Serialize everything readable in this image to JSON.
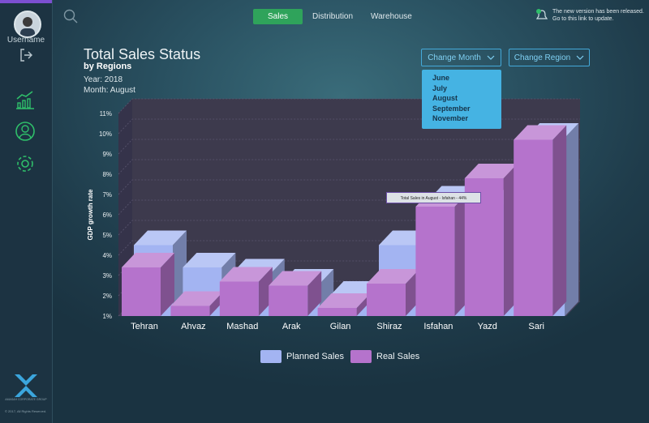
{
  "user": {
    "username": "Username"
  },
  "nav": {
    "tabs": [
      {
        "label": "Sales"
      },
      {
        "label": "Distribution"
      },
      {
        "label": "Warehouse"
      }
    ]
  },
  "notification": {
    "line1": "The new version has been released.",
    "line2": "Go to this link to update."
  },
  "header": {
    "title": "Total Sales Status",
    "subtitle": "by Regions",
    "year": "Year: 2018",
    "month": "Month: August"
  },
  "filters": {
    "month_label": "Change Month",
    "region_label": "Change Region",
    "month_options": [
      "June",
      "July",
      "August",
      "September",
      "November"
    ]
  },
  "chart_data": {
    "type": "bar",
    "ylabel": "GDP growth rate",
    "ylim": [
      1,
      11
    ],
    "yticks": [
      "1%",
      "2%",
      "3%",
      "4%",
      "5%",
      "6%",
      "7%",
      "8%",
      "9%",
      "10%",
      "11%"
    ],
    "categories": [
      "Tehran",
      "Ahvaz",
      "Mashad",
      "Arak",
      "Gilan",
      "Shiraz",
      "Isfahan",
      "Yazd",
      "Sari"
    ],
    "series": [
      {
        "name": "Planned Sales",
        "color": "#a3b4f2",
        "values": [
          4.5,
          3.4,
          3.1,
          2.6,
          2.0,
          4.5,
          6.7,
          6.5,
          9.8
        ]
      },
      {
        "name": "Real Sales",
        "color": "#b573cc",
        "values": [
          3.4,
          1.5,
          2.7,
          2.5,
          1.4,
          2.6,
          6.4,
          7.8,
          9.7
        ]
      }
    ],
    "tooltip": "Total Sales in August - Isfahan - 44%"
  },
  "footer": {
    "copyright": "© 2017, All Rights Reserved.",
    "brand": "AMASAH CORPORATE GROUP"
  },
  "colors": {
    "accent": "#2fa35b",
    "sidebar": "#1c3342",
    "dropdown": "#45b3e3"
  }
}
